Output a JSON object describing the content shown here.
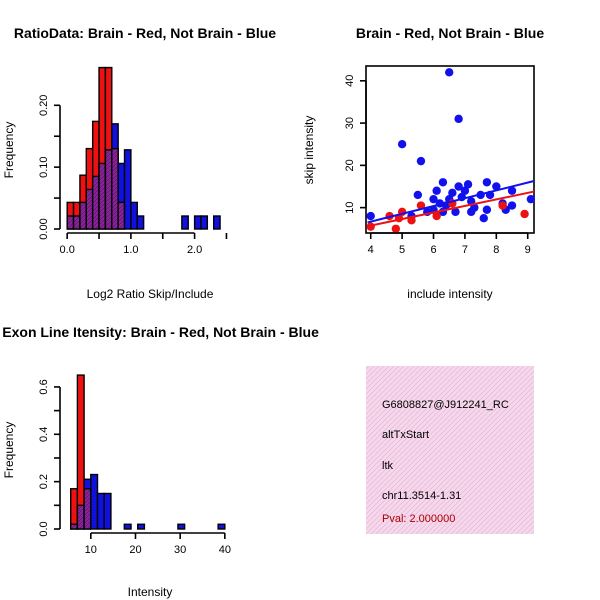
{
  "chart_data": [
    {
      "id": "ratio",
      "type": "bar",
      "title": "RatioData: Brain - Red, Not Brain - Blue",
      "xlabel": "Log2 Ratio Skip/Include",
      "ylabel": "Frequency",
      "xlim": [
        -0.05,
        2.65
      ],
      "ylim": [
        0,
        0.27
      ],
      "bin_width": 0.1,
      "bin_starts": [
        0.0,
        0.1,
        0.2,
        0.3,
        0.4,
        0.5,
        0.6,
        0.7,
        0.8,
        0.9,
        1.0,
        1.1,
        1.2,
        1.3,
        1.4,
        1.5,
        1.6,
        1.7,
        1.8,
        1.9,
        2.0,
        2.1,
        2.2,
        2.3,
        2.4,
        2.5
      ],
      "xticks": [
        0.0,
        1.0,
        2.0
      ],
      "xtick_labels": [
        "0.0",
        "1.0",
        "2.0"
      ],
      "xminor_ticks": [
        0.5,
        1.5,
        2.5
      ],
      "yticks": [
        0.0,
        0.1,
        0.2
      ],
      "ytick_labels": [
        "0.00",
        "0.10",
        "0.20"
      ],
      "yminor_ticks": [
        0.05,
        0.15
      ],
      "series": [
        {
          "name": "Brain",
          "color": "#ee1111",
          "values": [
            0.043,
            0.043,
            0.087,
            0.13,
            0.174,
            0.261,
            0.261,
            0.13,
            0.043,
            0,
            0,
            0,
            0,
            0,
            0,
            0,
            0,
            0,
            0,
            0,
            0,
            0,
            0,
            0,
            0,
            0
          ]
        },
        {
          "name": "Not Brain",
          "color": "#1111dd",
          "values": [
            0.021,
            0.021,
            0.043,
            0.064,
            0.085,
            0.106,
            0.128,
            0.17,
            0.106,
            0.128,
            0.043,
            0.021,
            0,
            0,
            0,
            0,
            0,
            0,
            0.021,
            0,
            0.021,
            0.021,
            0,
            0.021,
            0,
            0
          ]
        }
      ],
      "overlap_color": "#882299"
    },
    {
      "id": "scatter",
      "type": "scatter",
      "title": "Brain - Red, Not Brain - Blue",
      "xlabel": "include intensity",
      "ylabel": "skip intensity",
      "xlim": [
        3.85,
        9.2
      ],
      "ylim": [
        4,
        43.5
      ],
      "xticks": [
        4,
        5,
        6,
        7,
        8,
        9
      ],
      "xtick_labels": [
        "4",
        "5",
        "6",
        "7",
        "8",
        "9"
      ],
      "yticks": [
        10,
        20,
        30,
        40
      ],
      "ytick_labels": [
        "10",
        "20",
        "30",
        "40"
      ],
      "series": [
        {
          "name": "Brain",
          "color": "#ee1111",
          "points": [
            [
              4.0,
              5.5
            ],
            [
              4.6,
              8.0
            ],
            [
              4.8,
              5.0
            ],
            [
              4.9,
              7.5
            ],
            [
              5.0,
              9.0
            ],
            [
              5.3,
              7.0
            ],
            [
              5.6,
              10.5
            ],
            [
              6.1,
              8.0
            ],
            [
              6.6,
              11.0
            ],
            [
              8.2,
              10.5
            ],
            [
              8.9,
              8.5
            ]
          ],
          "fit": [
            [
              3.9,
              5.6
            ],
            [
              9.2,
              13.8
            ]
          ]
        },
        {
          "name": "Not Brain",
          "color": "#1111ee",
          "points": [
            [
              4.0,
              8.0
            ],
            [
              5.0,
              25.0
            ],
            [
              5.3,
              8.0
            ],
            [
              5.5,
              13.0
            ],
            [
              5.6,
              21.0
            ],
            [
              5.8,
              9.0
            ],
            [
              6.0,
              9.5
            ],
            [
              6.0,
              12.0
            ],
            [
              6.1,
              14.0
            ],
            [
              6.2,
              11.0
            ],
            [
              6.3,
              16.0
            ],
            [
              6.3,
              9.0
            ],
            [
              6.4,
              10.5
            ],
            [
              6.5,
              42.0
            ],
            [
              6.5,
              12.0
            ],
            [
              6.6,
              13.5
            ],
            [
              6.7,
              9.0
            ],
            [
              6.8,
              15.0
            ],
            [
              6.8,
              31.0
            ],
            [
              6.9,
              12.5
            ],
            [
              7.0,
              14.0
            ],
            [
              7.1,
              15.5
            ],
            [
              7.2,
              9.0
            ],
            [
              7.2,
              11.5
            ],
            [
              7.3,
              10.0
            ],
            [
              7.5,
              13.0
            ],
            [
              7.6,
              7.5
            ],
            [
              7.7,
              9.5
            ],
            [
              7.7,
              16.0
            ],
            [
              7.8,
              13.0
            ],
            [
              8.0,
              15.0
            ],
            [
              8.2,
              11.0
            ],
            [
              8.3,
              9.5
            ],
            [
              8.5,
              14.0
            ],
            [
              8.5,
              10.5
            ],
            [
              9.1,
              12.0
            ]
          ],
          "fit": [
            [
              3.9,
              6.5
            ],
            [
              9.2,
              16.3
            ]
          ]
        }
      ]
    },
    {
      "id": "intensity",
      "type": "bar",
      "title": "Max Exon Line Itensity: Brain - Red, Not Brain - Blue",
      "xlabel": "Intensity",
      "ylabel": "Frequency",
      "xlim": [
        4.0,
        42.5
      ],
      "ylim": [
        0,
        0.68
      ],
      "bin_width": 1.5,
      "bin_starts": [
        5.5,
        7.0,
        8.5,
        10.0,
        11.5,
        13.0,
        14.5,
        16.0,
        17.5,
        19.0,
        20.5,
        22.0,
        23.5,
        25.0,
        26.5,
        28.0,
        29.5,
        31.0,
        32.5,
        34.0,
        35.5,
        37.0,
        38.5,
        40.0
      ],
      "xticks": [
        10,
        20,
        30,
        40
      ],
      "xtick_labels": [
        "10",
        "20",
        "30",
        "40"
      ],
      "yticks": [
        0.0,
        0.2,
        0.4,
        0.6
      ],
      "ytick_labels": [
        "0.0",
        "0.2",
        "0.4",
        "0.6"
      ],
      "yminor_ticks": [
        0.1,
        0.3,
        0.5
      ],
      "series": [
        {
          "name": "Brain",
          "color": "#ee1111",
          "values": [
            0.17,
            0.65,
            0.17,
            0,
            0,
            0,
            0,
            0,
            0,
            0,
            0,
            0,
            0,
            0,
            0,
            0,
            0,
            0,
            0,
            0,
            0,
            0,
            0,
            0
          ]
        },
        {
          "name": "Not Brain",
          "color": "#1111dd",
          "values": [
            0.02,
            0.1,
            0.21,
            0.23,
            0.15,
            0.15,
            0,
            0,
            0.02,
            0,
            0.02,
            0,
            0,
            0,
            0,
            0,
            0.02,
            0,
            0,
            0,
            0,
            0,
            0.02,
            0
          ]
        }
      ],
      "overlap_color": "#882299"
    }
  ],
  "info_panel": {
    "line1": "G6808827@J912241_RC",
    "line2": "altTxStart",
    "line3": "ltk",
    "line4": "chr11.3514-1.31",
    "pval": "Pval: 2.000000",
    "pval_color": "#aa0000",
    "bg_color": "#f5d8ec"
  }
}
